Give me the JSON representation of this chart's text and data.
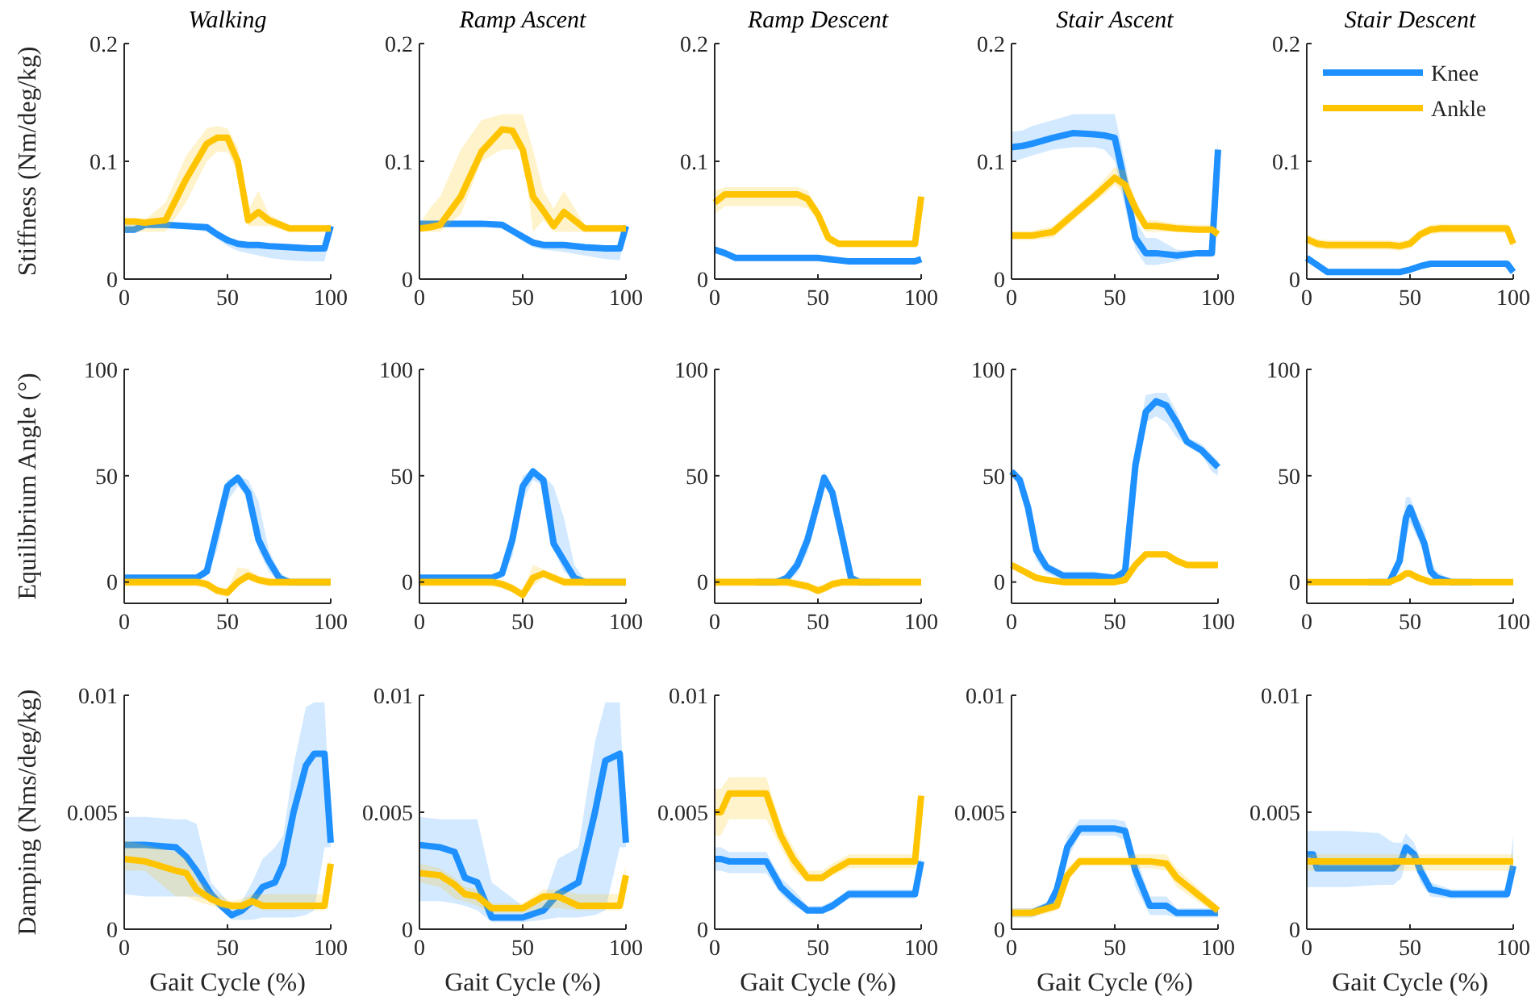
{
  "chart_data": [
    {
      "type": "line",
      "title": "Walking",
      "ylabel": "Stiffness (Nm/deg/kg)",
      "x": [
        0,
        5,
        10,
        20,
        30,
        40,
        45,
        50,
        55,
        60,
        65,
        70,
        80,
        90,
        97,
        100
      ],
      "xlim": [
        0,
        100
      ],
      "xticks": [
        0,
        50,
        100
      ],
      "ylim": [
        0,
        0.2
      ],
      "yticks": [
        0,
        0.1,
        0.2
      ],
      "series": [
        {
          "color": "#1e90ff",
          "values": [
            0.042,
            0.042,
            0.046,
            0.046,
            0.045,
            0.044,
            0.038,
            0.033,
            0.03,
            0.029,
            0.029,
            0.028,
            0.027,
            0.026,
            0.026,
            0.045
          ],
          "lower": [
            0.044,
            0.044,
            0.044,
            0.044,
            0.043,
            0.04,
            0.034,
            0.028,
            0.024,
            0.022,
            0.02,
            0.018,
            0.016,
            0.015,
            0.015,
            0.04
          ],
          "upper": [
            0.048,
            0.048,
            0.048,
            0.048,
            0.047,
            0.046,
            0.041,
            0.036,
            0.032,
            0.031,
            0.031,
            0.03,
            0.029,
            0.028,
            0.028,
            0.047
          ]
        },
        {
          "color": "#ffc400",
          "values": [
            0.049,
            0.049,
            0.048,
            0.05,
            0.085,
            0.115,
            0.12,
            0.12,
            0.1,
            0.05,
            0.057,
            0.05,
            0.043,
            0.043,
            0.043,
            0.043
          ],
          "lower": [
            0.04,
            0.04,
            0.04,
            0.04,
            0.065,
            0.1,
            0.108,
            0.108,
            0.09,
            0.045,
            0.045,
            0.045,
            0.04,
            0.04,
            0.04,
            0.04
          ],
          "upper": [
            0.05,
            0.05,
            0.05,
            0.065,
            0.105,
            0.128,
            0.13,
            0.128,
            0.112,
            0.058,
            0.075,
            0.055,
            0.046,
            0.046,
            0.046,
            0.046
          ]
        }
      ]
    },
    {
      "type": "line",
      "title": "Ramp Ascent",
      "x": [
        0,
        5,
        10,
        20,
        30,
        40,
        45,
        50,
        55,
        60,
        65,
        70,
        80,
        90,
        97,
        100
      ],
      "xlim": [
        0,
        100
      ],
      "xticks": [
        0,
        50,
        100
      ],
      "ylim": [
        0,
        0.2
      ],
      "yticks": [
        0,
        0.1,
        0.2
      ],
      "series": [
        {
          "color": "#1e90ff",
          "values": [
            0.047,
            0.047,
            0.047,
            0.047,
            0.047,
            0.046,
            0.041,
            0.036,
            0.031,
            0.029,
            0.029,
            0.029,
            0.027,
            0.026,
            0.026,
            0.045
          ],
          "lower": [
            0.045,
            0.045,
            0.045,
            0.045,
            0.045,
            0.044,
            0.038,
            0.032,
            0.027,
            0.025,
            0.024,
            0.023,
            0.02,
            0.017,
            0.016,
            0.042
          ],
          "upper": [
            0.049,
            0.049,
            0.049,
            0.049,
            0.049,
            0.048,
            0.043,
            0.038,
            0.033,
            0.031,
            0.031,
            0.031,
            0.029,
            0.028,
            0.028,
            0.047
          ]
        },
        {
          "color": "#ffc400",
          "values": [
            0.043,
            0.044,
            0.046,
            0.07,
            0.108,
            0.127,
            0.126,
            0.11,
            0.07,
            0.058,
            0.045,
            0.057,
            0.043,
            0.043,
            0.043,
            0.043
          ],
          "lower": [
            0.04,
            0.04,
            0.04,
            0.055,
            0.1,
            0.11,
            0.11,
            0.11,
            0.04,
            0.05,
            0.04,
            0.04,
            0.04,
            0.04,
            0.04,
            0.04
          ],
          "upper": [
            0.046,
            0.06,
            0.07,
            0.11,
            0.135,
            0.14,
            0.14,
            0.14,
            0.11,
            0.075,
            0.06,
            0.075,
            0.046,
            0.046,
            0.046,
            0.046
          ]
        }
      ]
    },
    {
      "type": "line",
      "title": "Ramp Descent",
      "x": [
        0,
        5,
        10,
        20,
        30,
        40,
        45,
        50,
        55,
        60,
        65,
        70,
        80,
        90,
        97,
        100
      ],
      "xlim": [
        0,
        100
      ],
      "xticks": [
        0,
        50,
        100
      ],
      "ylim": [
        0,
        0.2
      ],
      "yticks": [
        0,
        0.1,
        0.2
      ],
      "series": [
        {
          "color": "#1e90ff",
          "values": [
            0.025,
            0.022,
            0.018,
            0.018,
            0.018,
            0.018,
            0.018,
            0.018,
            0.017,
            0.016,
            0.015,
            0.015,
            0.015,
            0.015,
            0.015,
            0.017
          ],
          "lower": [
            0.023,
            0.02,
            0.016,
            0.016,
            0.016,
            0.016,
            0.016,
            0.016,
            0.015,
            0.014,
            0.013,
            0.013,
            0.013,
            0.013,
            0.013,
            0.015
          ],
          "upper": [
            0.027,
            0.024,
            0.02,
            0.02,
            0.02,
            0.02,
            0.02,
            0.02,
            0.019,
            0.018,
            0.017,
            0.017,
            0.017,
            0.017,
            0.017,
            0.019
          ]
        },
        {
          "color": "#ffc400",
          "values": [
            0.065,
            0.072,
            0.072,
            0.072,
            0.072,
            0.072,
            0.068,
            0.055,
            0.035,
            0.03,
            0.03,
            0.03,
            0.03,
            0.03,
            0.03,
            0.07
          ],
          "lower": [
            0.055,
            0.062,
            0.062,
            0.062,
            0.062,
            0.062,
            0.06,
            0.05,
            0.03,
            0.028,
            0.028,
            0.028,
            0.028,
            0.028,
            0.028,
            0.06
          ],
          "upper": [
            0.075,
            0.078,
            0.078,
            0.078,
            0.078,
            0.078,
            0.075,
            0.06,
            0.04,
            0.032,
            0.032,
            0.032,
            0.032,
            0.032,
            0.032,
            0.075
          ]
        }
      ]
    },
    {
      "type": "line",
      "title": "Stair Ascent",
      "x": [
        0,
        5,
        10,
        20,
        30,
        40,
        45,
        50,
        55,
        60,
        65,
        70,
        80,
        90,
        97,
        100
      ],
      "xlim": [
        0,
        100
      ],
      "xticks": [
        0,
        50,
        100
      ],
      "ylim": [
        0,
        0.2
      ],
      "yticks": [
        0,
        0.1,
        0.2
      ],
      "series": [
        {
          "color": "#1e90ff",
          "values": [
            0.112,
            0.113,
            0.115,
            0.12,
            0.124,
            0.123,
            0.122,
            0.12,
            0.08,
            0.035,
            0.022,
            0.022,
            0.02,
            0.022,
            0.022,
            0.11
          ],
          "lower": [
            0.1,
            0.102,
            0.105,
            0.11,
            0.112,
            0.112,
            0.11,
            0.1,
            0.06,
            0.025,
            0.012,
            0.012,
            0.015,
            0.02,
            0.02,
            0.1
          ],
          "upper": [
            0.125,
            0.126,
            0.13,
            0.135,
            0.14,
            0.14,
            0.14,
            0.14,
            0.1,
            0.05,
            0.035,
            0.035,
            0.025,
            0.024,
            0.024,
            0.12
          ]
        },
        {
          "color": "#ffc400",
          "values": [
            0.037,
            0.037,
            0.037,
            0.04,
            0.055,
            0.07,
            0.078,
            0.086,
            0.08,
            0.06,
            0.045,
            0.045,
            0.043,
            0.042,
            0.042,
            0.038
          ],
          "lower": [
            0.033,
            0.033,
            0.033,
            0.035,
            0.05,
            0.065,
            0.072,
            0.08,
            0.072,
            0.052,
            0.04,
            0.04,
            0.04,
            0.04,
            0.04,
            0.035
          ],
          "upper": [
            0.041,
            0.041,
            0.041,
            0.045,
            0.06,
            0.075,
            0.085,
            0.095,
            0.092,
            0.068,
            0.05,
            0.05,
            0.047,
            0.046,
            0.046,
            0.042
          ]
        }
      ]
    },
    {
      "type": "line",
      "title": "Stair Descent",
      "legend": "top right",
      "x": [
        0,
        5,
        10,
        20,
        30,
        40,
        45,
        50,
        55,
        60,
        65,
        70,
        80,
        90,
        97,
        100
      ],
      "xlim": [
        0,
        100
      ],
      "xticks": [
        0,
        50,
        100
      ],
      "ylim": [
        0,
        0.2
      ],
      "yticks": [
        0,
        0.1,
        0.2
      ],
      "series": [
        {
          "name": "Knee",
          "color": "#1e90ff",
          "values": [
            0.018,
            0.012,
            0.006,
            0.006,
            0.006,
            0.006,
            0.006,
            0.008,
            0.011,
            0.013,
            0.013,
            0.013,
            0.013,
            0.013,
            0.013,
            0.006
          ],
          "lower": [
            0.016,
            0.01,
            0.004,
            0.004,
            0.004,
            0.004,
            0.004,
            0.006,
            0.009,
            0.011,
            0.011,
            0.011,
            0.011,
            0.011,
            0.011,
            0.004
          ],
          "upper": [
            0.02,
            0.014,
            0.008,
            0.008,
            0.008,
            0.008,
            0.008,
            0.01,
            0.013,
            0.015,
            0.015,
            0.015,
            0.015,
            0.015,
            0.015,
            0.008
          ]
        },
        {
          "name": "Ankle",
          "color": "#ffc400",
          "values": [
            0.034,
            0.03,
            0.029,
            0.029,
            0.029,
            0.029,
            0.028,
            0.03,
            0.038,
            0.042,
            0.043,
            0.043,
            0.043,
            0.043,
            0.043,
            0.03
          ],
          "lower": [
            0.03,
            0.026,
            0.025,
            0.025,
            0.025,
            0.025,
            0.024,
            0.026,
            0.034,
            0.038,
            0.039,
            0.039,
            0.039,
            0.039,
            0.039,
            0.026
          ],
          "upper": [
            0.038,
            0.034,
            0.033,
            0.033,
            0.033,
            0.033,
            0.032,
            0.034,
            0.042,
            0.046,
            0.047,
            0.047,
            0.047,
            0.047,
            0.047,
            0.034
          ]
        }
      ]
    },
    {
      "type": "line",
      "ylabel": "Equilibrium Angle (°)",
      "x": [
        0,
        10,
        20,
        30,
        35,
        40,
        45,
        50,
        55,
        60,
        65,
        70,
        75,
        80,
        90,
        100
      ],
      "xlim": [
        0,
        100
      ],
      "xticks": [
        0,
        50,
        100
      ],
      "ylim": [
        -10,
        100
      ],
      "yticks": [
        0,
        50,
        100
      ],
      "series": [
        {
          "color": "#1e90ff",
          "values": [
            2,
            2,
            2,
            2,
            2,
            5,
            25,
            45,
            49,
            42,
            20,
            10,
            2,
            0,
            0,
            0
          ],
          "lower": [
            1,
            1,
            1,
            1,
            1,
            3,
            15,
            38,
            45,
            40,
            15,
            5,
            0,
            -1,
            -1,
            -1
          ],
          "upper": [
            3,
            3,
            3,
            3,
            3,
            8,
            30,
            48,
            50,
            48,
            38,
            15,
            5,
            1,
            1,
            1
          ]
        },
        {
          "color": "#ffc400",
          "values": [
            0,
            0,
            0,
            0,
            0,
            -1,
            -4,
            -5,
            0,
            3,
            1,
            0,
            0,
            0,
            0,
            0
          ],
          "lower": [
            -2,
            -2,
            -2,
            -2,
            -2,
            -3,
            -6,
            -7,
            -2,
            1,
            -1,
            -2,
            -2,
            -2,
            -2,
            -2
          ],
          "upper": [
            2,
            2,
            2,
            2,
            2,
            1,
            -2,
            -3,
            7,
            6,
            3,
            2,
            2,
            2,
            2,
            2
          ]
        }
      ]
    },
    {
      "type": "line",
      "x": [
        0,
        10,
        20,
        30,
        35,
        40,
        45,
        50,
        55,
        60,
        65,
        70,
        75,
        80,
        90,
        100
      ],
      "xlim": [
        0,
        100
      ],
      "xticks": [
        0,
        50,
        100
      ],
      "ylim": [
        -10,
        100
      ],
      "yticks": [
        0,
        50,
        100
      ],
      "series": [
        {
          "color": "#1e90ff",
          "values": [
            2,
            2,
            2,
            2,
            2,
            4,
            20,
            45,
            52,
            48,
            18,
            10,
            2,
            0,
            0,
            0
          ],
          "lower": [
            1,
            1,
            1,
            1,
            1,
            2,
            12,
            38,
            48,
            45,
            15,
            5,
            0,
            -1,
            -1,
            -1
          ],
          "upper": [
            3,
            3,
            3,
            3,
            3,
            6,
            28,
            50,
            53,
            50,
            45,
            30,
            8,
            1,
            1,
            1
          ]
        },
        {
          "color": "#ffc400",
          "values": [
            0,
            0,
            0,
            0,
            0,
            -1,
            -3,
            -6,
            2,
            4,
            2,
            0,
            0,
            0,
            0,
            0
          ],
          "lower": [
            -2,
            -2,
            -2,
            -2,
            -2,
            -3,
            -5,
            -8,
            -2,
            2,
            0,
            -2,
            -2,
            -2,
            -2,
            -2
          ],
          "upper": [
            2,
            2,
            2,
            2,
            2,
            1,
            -1,
            -4,
            8,
            6,
            4,
            2,
            2,
            2,
            2,
            2
          ]
        }
      ]
    },
    {
      "type": "line",
      "x": [
        0,
        10,
        20,
        30,
        35,
        40,
        45,
        50,
        53,
        57,
        62,
        66,
        70,
        80,
        90,
        100
      ],
      "xlim": [
        0,
        100
      ],
      "xticks": [
        0,
        50,
        100
      ],
      "ylim": [
        -10,
        100
      ],
      "yticks": [
        0,
        50,
        100
      ],
      "series": [
        {
          "color": "#1e90ff",
          "values": [
            null,
            null,
            0,
            0,
            2,
            8,
            20,
            38,
            49,
            42,
            20,
            2,
            0,
            0,
            null,
            null
          ],
          "lower": [
            -1,
            -1,
            -1,
            -1,
            0,
            4,
            14,
            33,
            45,
            40,
            15,
            0,
            -1,
            -1,
            -1,
            -1
          ],
          "upper": [
            1,
            1,
            1,
            1,
            4,
            12,
            25,
            42,
            52,
            45,
            22,
            4,
            1,
            1,
            1,
            1
          ]
        },
        {
          "color": "#ffc400",
          "values": [
            0,
            0,
            0,
            0,
            0,
            -1,
            -2,
            -4,
            -3,
            -1,
            0,
            0,
            0,
            0,
            0,
            0
          ],
          "lower": [
            -2,
            -2,
            -2,
            -2,
            -2,
            -3,
            -4,
            -6,
            -5,
            -3,
            -2,
            -2,
            -2,
            -2,
            -2,
            -2
          ],
          "upper": [
            2,
            2,
            2,
            2,
            2,
            1,
            0,
            -2,
            -1,
            1,
            2,
            2,
            2,
            2,
            2,
            2
          ]
        }
      ]
    },
    {
      "type": "line",
      "x": [
        0,
        4,
        8,
        12,
        17,
        25,
        40,
        50,
        55,
        60,
        65,
        70,
        75,
        80,
        85,
        92,
        97,
        100
      ],
      "xlim": [
        0,
        100
      ],
      "xticks": [
        0,
        50,
        100
      ],
      "ylim": [
        -10,
        100
      ],
      "yticks": [
        0,
        50,
        100
      ],
      "series": [
        {
          "color": "#1e90ff",
          "values": [
            52,
            48,
            35,
            15,
            7,
            3,
            3,
            2,
            5,
            55,
            80,
            85,
            83,
            75,
            66,
            62,
            57,
            54
          ],
          "lower": [
            50,
            45,
            30,
            10,
            4,
            1,
            1,
            1,
            3,
            45,
            75,
            78,
            75,
            68,
            64,
            60,
            52,
            50
          ],
          "upper": [
            54,
            50,
            38,
            20,
            9,
            5,
            5,
            3,
            8,
            60,
            88,
            89,
            89,
            80,
            68,
            65,
            60,
            57
          ]
        },
        {
          "color": "#ffc400",
          "values": [
            8,
            6,
            4,
            2,
            1,
            0,
            0,
            0,
            1,
            8,
            13,
            13,
            13,
            10,
            8,
            8,
            8,
            8
          ],
          "lower": [
            6.5,
            4.5,
            2.5,
            0.5,
            -0.5,
            -1.5,
            -1.5,
            -1.5,
            -0.5,
            6.5,
            11.5,
            11.5,
            11.5,
            8.5,
            6.5,
            6.5,
            6.5,
            6.5
          ],
          "upper": [
            9.5,
            7.5,
            5.5,
            3.5,
            2.5,
            1.5,
            1.5,
            1.5,
            2.5,
            9.5,
            14.5,
            14.5,
            14.5,
            11.5,
            9.5,
            9.5,
            9.5,
            9.5
          ]
        }
      ]
    },
    {
      "type": "line",
      "x": [
        0,
        10,
        20,
        30,
        40,
        45,
        48,
        50,
        54,
        57,
        60,
        63,
        70,
        80,
        90,
        100
      ],
      "xlim": [
        0,
        100
      ],
      "xticks": [
        0,
        50,
        100
      ],
      "ylim": [
        -10,
        100
      ],
      "yticks": [
        0,
        50,
        100
      ],
      "series": [
        {
          "color": "#1e90ff",
          "values": [
            null,
            null,
            null,
            0,
            0,
            10,
            30,
            35,
            25,
            18,
            5,
            2,
            0,
            0,
            null,
            null
          ],
          "lower": [
            -1,
            -1,
            -1,
            -1,
            -1,
            5,
            20,
            28,
            20,
            12,
            2,
            0,
            -1,
            -1,
            -1,
            -1
          ],
          "upper": [
            1,
            1,
            1,
            1,
            1,
            15,
            40,
            40,
            30,
            25,
            10,
            5,
            1,
            1,
            1,
            1
          ]
        },
        {
          "color": "#ffc400",
          "values": [
            0,
            0,
            0,
            0,
            0,
            2,
            4,
            4,
            2,
            1,
            0,
            0,
            0,
            0,
            0,
            0
          ],
          "lower": [
            -1.5,
            -1.5,
            -1.5,
            -1.5,
            -1.5,
            0.5,
            2.5,
            2.5,
            0.5,
            -0.5,
            -1.5,
            -1.5,
            -1.5,
            -1.5,
            -1.5,
            -1.5
          ],
          "upper": [
            1.5,
            1.5,
            1.5,
            1.5,
            1.5,
            3.5,
            5.5,
            5.5,
            3.5,
            2.5,
            1.5,
            1.5,
            1.5,
            1.5,
            1.5,
            1.5
          ]
        }
      ]
    },
    {
      "type": "line",
      "ylabel": "Damping (Nms/deg/kg)",
      "xlabel": "Gait Cycle (%)",
      "x": [
        0,
        10,
        25,
        30,
        35,
        42,
        47,
        52,
        57,
        62,
        67,
        73,
        77,
        82,
        88,
        92,
        97,
        100
      ],
      "xlim": [
        0,
        100
      ],
      "xticks": [
        0,
        50,
        100
      ],
      "ylim": [
        0,
        0.01
      ],
      "yticks": [
        0,
        0.005,
        0.01
      ],
      "series": [
        {
          "color": "#1e90ff",
          "values": [
            0.0036,
            0.0036,
            0.0035,
            0.0031,
            0.0025,
            0.0015,
            0.001,
            0.0006,
            0.0008,
            0.0012,
            0.0018,
            0.002,
            0.0028,
            0.005,
            0.007,
            0.0075,
            0.0075,
            0.0037
          ],
          "lower": [
            0.0015,
            0.0014,
            0.0014,
            0.0014,
            0.0014,
            0.0012,
            0.0008,
            0.0004,
            0.0004,
            0.0004,
            0.0005,
            0.0005,
            0.0005,
            0.0005,
            0.0006,
            0.0008,
            0.0035,
            0.0035
          ],
          "upper": [
            0.0048,
            0.0048,
            0.0047,
            0.0047,
            0.0045,
            0.002,
            0.0015,
            0.001,
            0.0012,
            0.002,
            0.003,
            0.0035,
            0.004,
            0.007,
            0.0095,
            0.0097,
            0.0097,
            0.004
          ]
        },
        {
          "color": "#ffc400",
          "values": [
            0.003,
            0.0029,
            0.0025,
            0.0024,
            0.0017,
            0.0013,
            0.0011,
            0.001,
            0.001,
            0.0012,
            0.001,
            0.001,
            0.001,
            0.001,
            0.001,
            0.001,
            0.001,
            0.0028
          ],
          "lower": [
            0.0025,
            0.0025,
            0.0014,
            0.0014,
            0.0012,
            0.001,
            0.0009,
            0.0008,
            0.0008,
            0.001,
            0.0008,
            0.0008,
            0.0008,
            0.0008,
            0.0008,
            0.0008,
            0.0008,
            0.0024
          ],
          "upper": [
            0.0038,
            0.0036,
            0.0033,
            0.003,
            0.0022,
            0.0016,
            0.0014,
            0.0012,
            0.0013,
            0.0015,
            0.0015,
            0.0015,
            0.0015,
            0.0015,
            0.0015,
            0.0015,
            0.0015,
            0.0032
          ]
        }
      ]
    },
    {
      "type": "line",
      "xlabel": "Gait Cycle (%)",
      "x": [
        0,
        10,
        17,
        22,
        28,
        35,
        50,
        60,
        67,
        77,
        85,
        90,
        97,
        100
      ],
      "xlim": [
        0,
        100
      ],
      "xticks": [
        0,
        50,
        100
      ],
      "ylim": [
        0,
        0.01
      ],
      "yticks": [
        0,
        0.005,
        0.01
      ],
      "series": [
        {
          "color": "#1e90ff",
          "values": [
            0.0036,
            0.0035,
            0.0033,
            0.0022,
            0.002,
            0.0005,
            0.0005,
            0.0008,
            0.0015,
            0.002,
            0.005,
            0.0072,
            0.0075,
            0.0037
          ],
          "lower": [
            0.0012,
            0.0012,
            0.0011,
            0.001,
            0.0008,
            0.0003,
            0.0003,
            0.0004,
            0.0005,
            0.0005,
            0.0006,
            0.0008,
            0.0035,
            0.0035
          ],
          "upper": [
            0.0048,
            0.0047,
            0.0047,
            0.0047,
            0.0047,
            0.002,
            0.001,
            0.0012,
            0.003,
            0.0035,
            0.008,
            0.0097,
            0.0097,
            0.004
          ]
        },
        {
          "color": "#ffc400",
          "values": [
            0.0024,
            0.0023,
            0.0019,
            0.0015,
            0.0014,
            0.0009,
            0.0009,
            0.0014,
            0.0014,
            0.001,
            0.001,
            0.001,
            0.001,
            0.0023
          ],
          "lower": [
            0.002,
            0.0018,
            0.0013,
            0.0012,
            0.001,
            0.0007,
            0.0007,
            0.0009,
            0.0009,
            0.0008,
            0.0008,
            0.0008,
            0.0008,
            0.002
          ],
          "upper": [
            0.0028,
            0.0026,
            0.0022,
            0.0018,
            0.0017,
            0.0011,
            0.0011,
            0.0017,
            0.0017,
            0.0015,
            0.0015,
            0.0015,
            0.0015,
            0.0027
          ]
        }
      ]
    },
    {
      "type": "line",
      "xlabel": "Gait Cycle (%)",
      "x": [
        0,
        3,
        7,
        25,
        32,
        38,
        45,
        52,
        57,
        65,
        80,
        97,
        100
      ],
      "xlim": [
        0,
        100
      ],
      "xticks": [
        0,
        50,
        100
      ],
      "ylim": [
        0,
        0.01
      ],
      "yticks": [
        0,
        0.005,
        0.01
      ],
      "series": [
        {
          "color": "#1e90ff",
          "values": [
            0.003,
            0.003,
            0.0029,
            0.0029,
            0.0018,
            0.0013,
            0.0008,
            0.0008,
            0.001,
            0.0015,
            0.0015,
            0.0015,
            0.0029
          ],
          "lower": [
            0.0025,
            0.0025,
            0.0024,
            0.0024,
            0.0015,
            0.001,
            0.0007,
            0.0007,
            0.0008,
            0.0013,
            0.0013,
            0.0013,
            0.0025
          ],
          "upper": [
            0.0035,
            0.0035,
            0.0033,
            0.0033,
            0.0022,
            0.0017,
            0.001,
            0.001,
            0.0012,
            0.0017,
            0.0017,
            0.0017,
            0.0032
          ]
        },
        {
          "color": "#ffc400",
          "values": [
            0.005,
            0.005,
            0.0058,
            0.0058,
            0.004,
            0.003,
            0.0022,
            0.0022,
            0.0025,
            0.0029,
            0.0029,
            0.0029,
            0.0057
          ],
          "lower": [
            0.004,
            0.004,
            0.0047,
            0.0047,
            0.0035,
            0.0025,
            0.002,
            0.002,
            0.0023,
            0.0026,
            0.0026,
            0.0026,
            0.005
          ],
          "upper": [
            0.006,
            0.006,
            0.0065,
            0.0065,
            0.0045,
            0.0035,
            0.0025,
            0.0025,
            0.0028,
            0.0032,
            0.0032,
            0.0032,
            0.006
          ]
        }
      ]
    },
    {
      "type": "line",
      "xlabel": "Gait Cycle (%)",
      "x": [
        0,
        10,
        18,
        22,
        27,
        33,
        50,
        55,
        60,
        67,
        75,
        80,
        90,
        100
      ],
      "xlim": [
        0,
        100
      ],
      "xticks": [
        0,
        50,
        100
      ],
      "ylim": [
        0,
        0.01
      ],
      "yticks": [
        0,
        0.005,
        0.01
      ],
      "series": [
        {
          "color": "#1e90ff",
          "values": [
            null,
            0.0007,
            0.001,
            0.0017,
            0.0035,
            0.0043,
            0.0043,
            0.0042,
            0.0025,
            0.001,
            0.001,
            0.0007,
            0.0007,
            0.0007
          ],
          "lower": [
            0.0005,
            0.0005,
            0.0008,
            0.0012,
            0.003,
            0.004,
            0.004,
            0.0038,
            0.0018,
            0.0006,
            0.0006,
            0.0005,
            0.0005,
            0.0005
          ],
          "upper": [
            0.0009,
            0.0009,
            0.0012,
            0.0022,
            0.004,
            0.0047,
            0.0047,
            0.0046,
            0.0032,
            0.0014,
            0.0014,
            0.0009,
            0.0009,
            0.0009
          ]
        },
        {
          "color": "#ffc400",
          "values": [
            0.0007,
            0.0007,
            0.0009,
            0.001,
            0.0023,
            0.0029,
            0.0029,
            0.0029,
            0.0029,
            0.0029,
            0.0028,
            0.0022,
            0.0015,
            0.0008
          ],
          "lower": [
            0.0005,
            0.0005,
            0.0007,
            0.0008,
            0.002,
            0.0027,
            0.0027,
            0.0027,
            0.0026,
            0.0026,
            0.0025,
            0.0018,
            0.0012,
            0.0006
          ],
          "upper": [
            0.0009,
            0.0009,
            0.0011,
            0.0013,
            0.0026,
            0.0031,
            0.0031,
            0.0031,
            0.0032,
            0.0032,
            0.0032,
            0.0026,
            0.0018,
            0.001
          ]
        }
      ]
    },
    {
      "type": "line",
      "xlabel": "Gait Cycle (%)",
      "x": [
        0,
        3,
        5,
        20,
        35,
        42,
        46,
        48,
        52,
        55,
        60,
        70,
        97,
        100
      ],
      "xlim": [
        0,
        100
      ],
      "xticks": [
        0,
        50,
        100
      ],
      "ylim": [
        0,
        0.01
      ],
      "yticks": [
        0,
        0.005,
        0.01
      ],
      "series": [
        {
          "color": "#1e90ff",
          "values": [
            0.0032,
            0.0032,
            0.0026,
            0.0026,
            0.0026,
            0.0026,
            0.003,
            0.0035,
            0.0032,
            0.0025,
            0.0017,
            0.0015,
            0.0015,
            0.0027
          ],
          "lower": [
            0.0018,
            0.0018,
            0.0018,
            0.0018,
            0.0019,
            0.0019,
            0.0022,
            0.003,
            0.0028,
            0.002,
            0.0014,
            0.0013,
            0.0013,
            0.0022
          ],
          "upper": [
            0.0042,
            0.0042,
            0.0042,
            0.0042,
            0.0041,
            0.0037,
            0.0037,
            0.0041,
            0.0037,
            0.003,
            0.002,
            0.0017,
            0.0017,
            0.004
          ]
        },
        {
          "color": "#ffc400",
          "values": [
            0.0029,
            0.0029,
            0.0029,
            0.0029,
            0.0029,
            0.0029,
            0.0029,
            0.0029,
            0.0029,
            0.0029,
            0.0029,
            0.0029,
            0.0029,
            0.0029
          ],
          "lower": [
            0.0025,
            0.0025,
            0.0025,
            0.0025,
            0.0025,
            0.0025,
            0.0025,
            0.0025,
            0.0025,
            0.0025,
            0.0025,
            0.0025,
            0.0025,
            0.0025
          ],
          "upper": [
            0.0032,
            0.0032,
            0.0032,
            0.0032,
            0.0032,
            0.0032,
            0.0032,
            0.0032,
            0.0032,
            0.0032,
            0.0032,
            0.0032,
            0.0032,
            0.0032
          ]
        }
      ]
    }
  ]
}
